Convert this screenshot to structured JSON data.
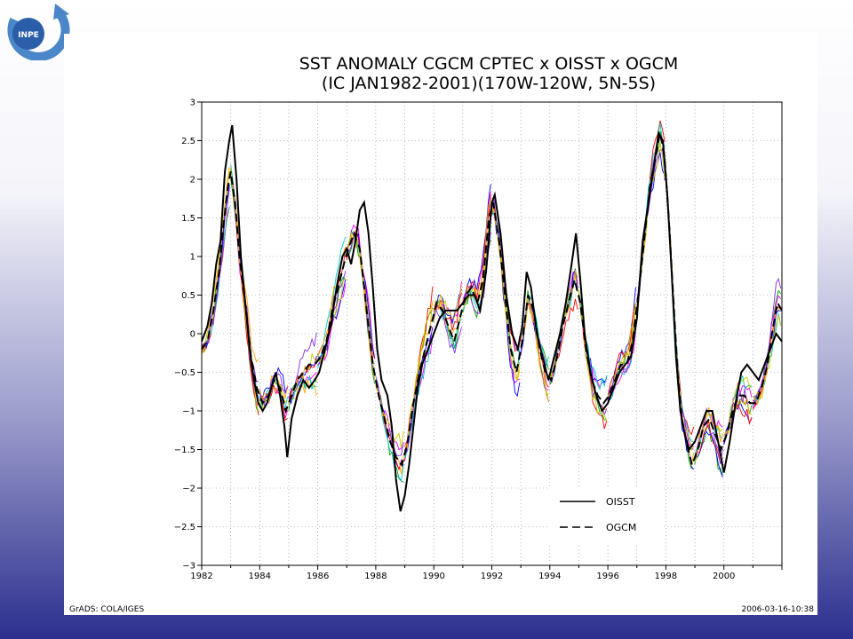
{
  "logo": {
    "text": "INPE"
  },
  "chart_data": {
    "type": "line",
    "title_line1": "SST ANOMALY CGCM CPTEC x OISST x OGCM",
    "title_line2": "(IC JAN1982-2001)(170W-120W, 5N-5S)",
    "xlim": [
      1982,
      2002
    ],
    "ylim": [
      -3,
      3
    ],
    "x_ticks": [
      1982,
      1984,
      1986,
      1988,
      1990,
      1992,
      1994,
      1996,
      1998,
      2000
    ],
    "y_ticks": [
      -3,
      -2.5,
      -2,
      -1.5,
      -1,
      -0.5,
      0,
      0.5,
      1,
      1.5,
      2,
      2.5,
      3
    ],
    "y_tick_labels": [
      "−3",
      "−2.5",
      "−2",
      "−1.5",
      "−1",
      "−0.5",
      "0",
      "0.5",
      "1",
      "1.5",
      "2",
      "2.5",
      "3"
    ],
    "grid": true,
    "legend_placement": "bottom-right",
    "series": [
      {
        "name": "OISST",
        "style": "solid",
        "color": "#000000",
        "points": [
          [
            1982.0,
            -0.1
          ],
          [
            1982.2,
            0.1
          ],
          [
            1982.35,
            0.4
          ],
          [
            1982.5,
            0.9
          ],
          [
            1982.65,
            1.2
          ],
          [
            1982.8,
            2.1
          ],
          [
            1982.95,
            2.5
          ],
          [
            1983.05,
            2.7
          ],
          [
            1983.2,
            2.0
          ],
          [
            1983.35,
            1.0
          ],
          [
            1983.5,
            0.4
          ],
          [
            1983.65,
            -0.2
          ],
          [
            1983.8,
            -0.6
          ],
          [
            1983.95,
            -0.9
          ],
          [
            1984.1,
            -1.0
          ],
          [
            1984.25,
            -0.9
          ],
          [
            1984.4,
            -0.7
          ],
          [
            1984.55,
            -0.5
          ],
          [
            1984.7,
            -0.8
          ],
          [
            1984.85,
            -1.2
          ],
          [
            1984.95,
            -1.6
          ],
          [
            1985.1,
            -1.1
          ],
          [
            1985.3,
            -0.8
          ],
          [
            1985.5,
            -0.6
          ],
          [
            1985.7,
            -0.7
          ],
          [
            1985.9,
            -0.6
          ],
          [
            1986.05,
            -0.5
          ],
          [
            1986.25,
            -0.2
          ],
          [
            1986.45,
            0.1
          ],
          [
            1986.65,
            0.6
          ],
          [
            1986.85,
            1.0
          ],
          [
            1987.0,
            1.1
          ],
          [
            1987.15,
            0.9
          ],
          [
            1987.3,
            1.2
          ],
          [
            1987.45,
            1.6
          ],
          [
            1987.6,
            1.7
          ],
          [
            1987.75,
            1.3
          ],
          [
            1987.9,
            0.6
          ],
          [
            1988.05,
            -0.2
          ],
          [
            1988.2,
            -0.6
          ],
          [
            1988.4,
            -0.8
          ],
          [
            1988.55,
            -1.2
          ],
          [
            1988.7,
            -1.9
          ],
          [
            1988.85,
            -2.3
          ],
          [
            1989.0,
            -2.1
          ],
          [
            1989.15,
            -1.7
          ],
          [
            1989.3,
            -1.2
          ],
          [
            1989.45,
            -0.7
          ],
          [
            1989.6,
            -0.4
          ],
          [
            1989.8,
            -0.2
          ],
          [
            1990.0,
            0.0
          ],
          [
            1990.2,
            0.2
          ],
          [
            1990.4,
            0.3
          ],
          [
            1990.6,
            0.3
          ],
          [
            1990.8,
            0.3
          ],
          [
            1991.0,
            0.4
          ],
          [
            1991.2,
            0.5
          ],
          [
            1991.4,
            0.5
          ],
          [
            1991.6,
            0.3
          ],
          [
            1991.8,
            0.8
          ],
          [
            1992.0,
            1.7
          ],
          [
            1992.1,
            1.8
          ],
          [
            1992.3,
            1.3
          ],
          [
            1992.5,
            0.5
          ],
          [
            1992.7,
            0.0
          ],
          [
            1992.9,
            -0.2
          ],
          [
            1993.05,
            0.1
          ],
          [
            1993.2,
            0.8
          ],
          [
            1993.35,
            0.6
          ],
          [
            1993.55,
            0.0
          ],
          [
            1993.75,
            -0.3
          ],
          [
            1993.95,
            -0.6
          ],
          [
            1994.15,
            -0.3
          ],
          [
            1994.35,
            0.0
          ],
          [
            1994.55,
            0.4
          ],
          [
            1994.75,
            0.9
          ],
          [
            1994.9,
            1.3
          ],
          [
            1995.05,
            0.7
          ],
          [
            1995.2,
            0.0
          ],
          [
            1995.4,
            -0.5
          ],
          [
            1995.6,
            -0.8
          ],
          [
            1995.8,
            -1.0
          ],
          [
            1996.0,
            -0.9
          ],
          [
            1996.2,
            -0.7
          ],
          [
            1996.4,
            -0.5
          ],
          [
            1996.6,
            -0.4
          ],
          [
            1996.8,
            -0.3
          ],
          [
            1997.0,
            0.2
          ],
          [
            1997.2,
            1.2
          ],
          [
            1997.4,
            1.7
          ],
          [
            1997.6,
            2.2
          ],
          [
            1997.75,
            2.6
          ],
          [
            1997.9,
            2.5
          ],
          [
            1998.05,
            1.8
          ],
          [
            1998.2,
            0.8
          ],
          [
            1998.35,
            -0.3
          ],
          [
            1998.5,
            -1.0
          ],
          [
            1998.65,
            -1.3
          ],
          [
            1998.8,
            -1.5
          ],
          [
            1999.0,
            -1.4
          ],
          [
            1999.2,
            -1.2
          ],
          [
            1999.4,
            -1.0
          ],
          [
            1999.6,
            -1.0
          ],
          [
            1999.8,
            -1.4
          ],
          [
            2000.0,
            -1.8
          ],
          [
            2000.2,
            -1.4
          ],
          [
            2000.4,
            -0.9
          ],
          [
            2000.6,
            -0.5
          ],
          [
            2000.8,
            -0.4
          ],
          [
            2001.0,
            -0.5
          ],
          [
            2001.2,
            -0.6
          ],
          [
            2001.4,
            -0.4
          ],
          [
            2001.6,
            -0.2
          ],
          [
            2001.8,
            0.0
          ],
          [
            2002.0,
            -0.1
          ]
        ]
      },
      {
        "name": "OGCM",
        "style": "dashed",
        "color": "#000000",
        "points": [
          [
            1982.0,
            -0.2
          ],
          [
            1982.2,
            -0.1
          ],
          [
            1982.4,
            0.3
          ],
          [
            1982.6,
            0.8
          ],
          [
            1982.75,
            1.4
          ],
          [
            1982.9,
            1.9
          ],
          [
            1983.0,
            2.1
          ],
          [
            1983.15,
            1.7
          ],
          [
            1983.3,
            1.0
          ],
          [
            1983.5,
            0.4
          ],
          [
            1983.7,
            -0.3
          ],
          [
            1983.9,
            -0.7
          ],
          [
            1984.1,
            -0.9
          ],
          [
            1984.3,
            -0.8
          ],
          [
            1984.5,
            -0.6
          ],
          [
            1984.7,
            -0.7
          ],
          [
            1984.9,
            -1.0
          ],
          [
            1985.1,
            -0.8
          ],
          [
            1985.3,
            -0.6
          ],
          [
            1985.5,
            -0.5
          ],
          [
            1985.7,
            -0.4
          ],
          [
            1985.9,
            -0.4
          ],
          [
            1986.1,
            -0.3
          ],
          [
            1986.3,
            -0.1
          ],
          [
            1986.5,
            0.3
          ],
          [
            1986.7,
            0.6
          ],
          [
            1986.9,
            0.9
          ],
          [
            1987.05,
            1.1
          ],
          [
            1987.25,
            1.3
          ],
          [
            1987.45,
            1.1
          ],
          [
            1987.6,
            0.6
          ],
          [
            1987.75,
            0.1
          ],
          [
            1987.9,
            -0.4
          ],
          [
            1988.1,
            -0.8
          ],
          [
            1988.3,
            -1.1
          ],
          [
            1988.5,
            -1.4
          ],
          [
            1988.7,
            -1.6
          ],
          [
            1988.9,
            -1.7
          ],
          [
            1989.1,
            -1.4
          ],
          [
            1989.3,
            -0.9
          ],
          [
            1989.5,
            -0.5
          ],
          [
            1989.7,
            -0.2
          ],
          [
            1989.9,
            0.1
          ],
          [
            1990.1,
            0.4
          ],
          [
            1990.3,
            0.3
          ],
          [
            1990.5,
            0.1
          ],
          [
            1990.7,
            -0.1
          ],
          [
            1990.9,
            0.2
          ],
          [
            1991.1,
            0.5
          ],
          [
            1991.3,
            0.6
          ],
          [
            1991.5,
            0.4
          ],
          [
            1991.7,
            0.7
          ],
          [
            1991.9,
            1.5
          ],
          [
            1992.05,
            1.7
          ],
          [
            1992.25,
            1.2
          ],
          [
            1992.45,
            0.5
          ],
          [
            1992.65,
            -0.2
          ],
          [
            1992.85,
            -0.5
          ],
          [
            1993.05,
            -0.1
          ],
          [
            1993.25,
            0.5
          ],
          [
            1993.45,
            0.3
          ],
          [
            1993.65,
            -0.2
          ],
          [
            1993.85,
            -0.5
          ],
          [
            1994.05,
            -0.6
          ],
          [
            1994.25,
            -0.3
          ],
          [
            1994.45,
            0.1
          ],
          [
            1994.65,
            0.4
          ],
          [
            1994.85,
            0.7
          ],
          [
            1995.05,
            0.4
          ],
          [
            1995.25,
            -0.2
          ],
          [
            1995.45,
            -0.6
          ],
          [
            1995.65,
            -0.8
          ],
          [
            1995.85,
            -0.9
          ],
          [
            1996.05,
            -0.8
          ],
          [
            1996.25,
            -0.6
          ],
          [
            1996.45,
            -0.4
          ],
          [
            1996.65,
            -0.4
          ],
          [
            1996.85,
            -0.1
          ],
          [
            1997.05,
            0.5
          ],
          [
            1997.25,
            1.2
          ],
          [
            1997.45,
            1.9
          ],
          [
            1997.65,
            2.3
          ],
          [
            1997.8,
            2.6
          ],
          [
            1997.95,
            2.3
          ],
          [
            1998.1,
            1.5
          ],
          [
            1998.25,
            0.5
          ],
          [
            1998.4,
            -0.5
          ],
          [
            1998.55,
            -1.1
          ],
          [
            1998.7,
            -1.4
          ],
          [
            1998.9,
            -1.7
          ],
          [
            1999.1,
            -1.5
          ],
          [
            1999.3,
            -1.2
          ],
          [
            1999.5,
            -1.1
          ],
          [
            1999.7,
            -1.3
          ],
          [
            1999.9,
            -1.5
          ],
          [
            2000.1,
            -1.3
          ],
          [
            2000.3,
            -1.0
          ],
          [
            2000.5,
            -0.8
          ],
          [
            2000.7,
            -0.8
          ],
          [
            2000.9,
            -0.9
          ],
          [
            2001.1,
            -0.9
          ],
          [
            2001.3,
            -0.7
          ],
          [
            2001.5,
            -0.4
          ],
          [
            2001.7,
            0.1
          ],
          [
            2001.85,
            0.4
          ],
          [
            2002.0,
            0.3
          ]
        ]
      }
    ],
    "forecast_colors": [
      "#00a000",
      "#ff00ff",
      "#0000ff",
      "#ff0000",
      "#00c8c8",
      "#ffa500",
      "#8a2be2",
      "#c8c800"
    ]
  },
  "footer": {
    "left": "GrADS: COLA/IGES",
    "right": "2006-03-16-10:38"
  }
}
